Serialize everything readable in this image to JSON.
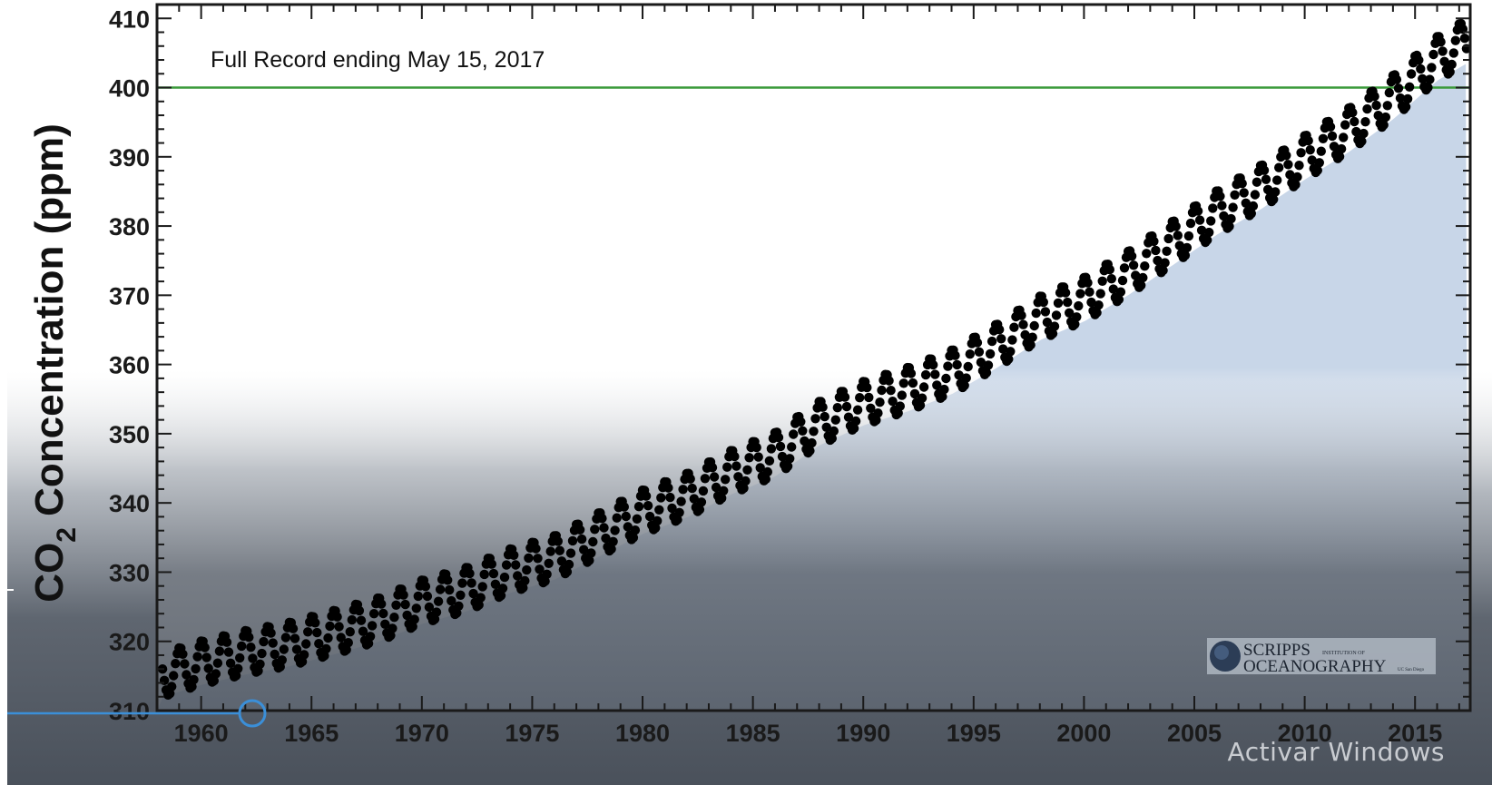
{
  "chart_data": {
    "type": "scatter",
    "title": "",
    "annotation": "Full Record ending May 15, 2017",
    "xlabel": "",
    "ylabel": "CO",
    "ylabel_subscript": "2",
    "ylabel_suffix": "Concentration (ppm)",
    "xlim": [
      1958.0,
      2017.5
    ],
    "ylim": [
      310,
      412
    ],
    "xticks": [
      1960,
      1965,
      1970,
      1975,
      1980,
      1985,
      1990,
      1995,
      2000,
      2005,
      2010,
      2015
    ],
    "yticks": [
      310,
      320,
      330,
      340,
      350,
      360,
      370,
      380,
      390,
      400,
      410
    ],
    "reference_line": {
      "y": 400,
      "color": "#3a9a3a"
    },
    "grid": false,
    "legend": "none",
    "area_fill": "#c8d6e8",
    "series": [
      {
        "marker_color": "#000000",
        "seasonal_amplitude_ppm": 3.2,
        "annual_trend": [
          [
            1958.5,
            315.4
          ],
          [
            1960,
            316.9
          ],
          [
            1962,
            318.4
          ],
          [
            1964,
            319.6
          ],
          [
            1966,
            321.3
          ],
          [
            1968,
            323.1
          ],
          [
            1970,
            325.7
          ],
          [
            1972,
            327.5
          ],
          [
            1974,
            330.2
          ],
          [
            1976,
            332.1
          ],
          [
            1978,
            335.4
          ],
          [
            1980,
            338.7
          ],
          [
            1982,
            341.1
          ],
          [
            1984,
            344.4
          ],
          [
            1986,
            347.0
          ],
          [
            1988,
            351.5
          ],
          [
            1990,
            354.4
          ],
          [
            1992,
            356.4
          ],
          [
            1994,
            358.9
          ],
          [
            1996,
            362.6
          ],
          [
            1998,
            366.7
          ],
          [
            2000,
            369.4
          ],
          [
            2002,
            373.2
          ],
          [
            2004,
            377.5
          ],
          [
            2006,
            381.9
          ],
          [
            2008,
            385.6
          ],
          [
            2010,
            389.9
          ],
          [
            2012,
            393.9
          ],
          [
            2014,
            398.6
          ],
          [
            2016,
            404.2
          ],
          [
            2017.4,
            406.8
          ]
        ]
      }
    ],
    "logo": {
      "line1": "SCRIPPS",
      "line1_small": "INSTITUTION OF",
      "line2": "OCEANOGRAPHY",
      "line2_small": "UC San Diego"
    }
  },
  "overlay": {
    "watermark": "Activar Windows"
  }
}
